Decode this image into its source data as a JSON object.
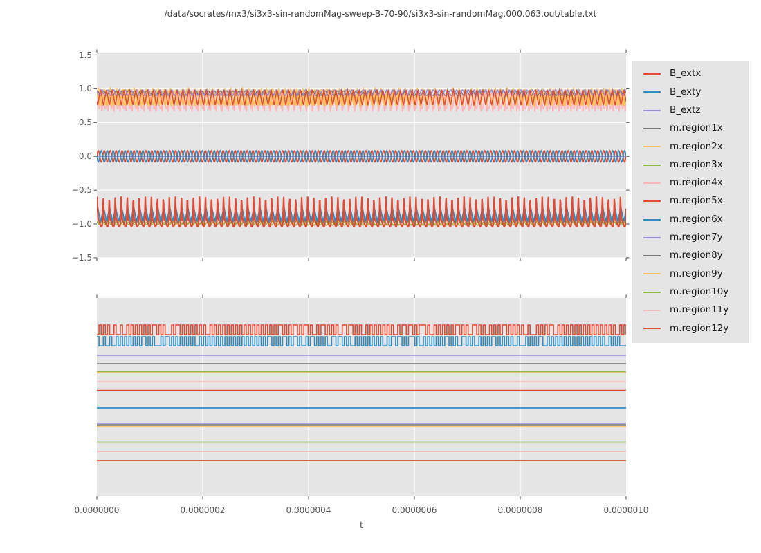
{
  "title": "/data/socrates/mx3/si3x3-sin-randomMag-sweep-B-70-90/si3x3-sin-randomMag.000.063.out/table.txt",
  "chart_data": {
    "type": "line",
    "title": "/data/socrates/mx3/si3x3-sin-randomMag-sweep-B-70-90/si3x3-sin-randomMag.000.063.out/table.txt",
    "xlabel": "t",
    "x_range": [
      0,
      1e-06
    ],
    "x_tick_labels": [
      "0.0000000",
      "0.0000002",
      "0.0000004",
      "0.0000006",
      "0.0000008",
      "0.0000010"
    ],
    "background_color": "#e5e5e5",
    "grid_color": "#ffffff",
    "tick_color": "#555555",
    "legend_position": "upper right, outside axes",
    "panels": [
      {
        "id": "top",
        "y_tick_labels": [
          "1.5",
          "1.0",
          "0.5",
          "0.0",
          "−0.5",
          "−1.0",
          "−1.5"
        ],
        "y_tick_values": [
          1.5,
          1.0,
          0.5,
          0.0,
          -0.5,
          -1.0,
          -1.5
        ],
        "ylim": [
          -1.53,
          1.53
        ],
        "grid": "horizontal and vertical white gridlines",
        "description": "Three dense oscillation bands: orange/pink/purple/red band between ~0.65 and 1.0; red+blue sine pair with flat purple zero line between ~-0.09 and 0.09; red spiky band with blue/green between ~-1.03 and -0.6"
      },
      {
        "id": "bottom",
        "y_tick_labels": [],
        "y_tick_values": [],
        "grid": "vertical white gridlines only",
        "description": "Red and blue square waves near top, then 13 flat horizontal colored lines (levels given as fraction of panel height from top)"
      }
    ],
    "top_draw_order": [
      "m.region11y",
      "m.region4x",
      "m.region9y",
      "m.region2x",
      "m.region8y",
      "m.region7y",
      "m.region12y",
      "m.region1x",
      "m.region10y",
      "m.region3x",
      "m.region6x",
      "m.region5x",
      "B_extz",
      "B_extx",
      "B_exty"
    ],
    "series": [
      {
        "name": "B_extx",
        "color": "#E24A33",
        "top": {
          "kind": "sine",
          "c": 0,
          "a": 0.085,
          "cycles": 89,
          "ph": 0,
          "lw": 1.6
        },
        "bottom": {
          "kind": "square",
          "hi": 0.136,
          "lo": 0.185,
          "cycles": 124,
          "seed": 3,
          "lw": 1.6
        }
      },
      {
        "name": "B_exty",
        "color": "#348ABD",
        "top": {
          "kind": "sine",
          "c": 0,
          "a": 0.085,
          "cycles": 89,
          "ph": 3.1416,
          "lw": 1.6
        },
        "bottom": {
          "kind": "square",
          "hi": 0.195,
          "lo": 0.241,
          "cycles": 124,
          "seed": 8,
          "lw": 1.6
        }
      },
      {
        "name": "B_extz",
        "color": "#988ED5",
        "top": {
          "kind": "flat",
          "c": 0,
          "lw": 1.5
        },
        "bottom": {
          "kind": "flat",
          "level": 0.289,
          "lw": 1.6
        }
      },
      {
        "name": "m.region1x",
        "color": "#777777",
        "top": {
          "kind": "sine",
          "c": -0.93,
          "a": 0.05,
          "cycles": 88,
          "ph": 1.1,
          "lw": 1.3
        },
        "bottom": {
          "kind": "flat",
          "level": 0.331,
          "lw": 1.6
        }
      },
      {
        "name": "m.region2x",
        "color": "#FBC15E",
        "top": {
          "kind": "tri",
          "c": 0.875,
          "a": 0.125,
          "cycles": 88,
          "ph": 0,
          "lw": 2.2
        },
        "bottom": {
          "kind": "flat",
          "level": 0.377,
          "lw": 1.6
        }
      },
      {
        "name": "m.region3x",
        "color": "#8EBA42",
        "top": {
          "kind": "sine",
          "c": -0.985,
          "a": 0.025,
          "cycles": 90,
          "ph": 2.2,
          "lw": 1.4
        },
        "bottom": {
          "kind": "flat",
          "level": 0.371,
          "lw": 1.5
        }
      },
      {
        "name": "m.region4x",
        "color": "#FFB5B8",
        "top": {
          "kind": "spiky",
          "c": 0.875,
          "a": 0.04,
          "spike": -0.2,
          "sharp": 5,
          "cycles": 88,
          "ph": 0.6,
          "ph2": 2.5,
          "lw": 1.8
        },
        "bottom": {
          "kind": "flat",
          "level": 0.422,
          "lw": 1.6
        }
      },
      {
        "name": "m.region5x",
        "color": "#E24A33",
        "top": {
          "kind": "spiky",
          "c": -0.99,
          "a": 0.045,
          "spike": 0.38,
          "sharp": 8,
          "cycles": 88,
          "ph": 0,
          "ph2": 1.2,
          "lw": 2.2
        },
        "bottom": {
          "kind": "flat",
          "level": 0.465,
          "lw": 1.6
        }
      },
      {
        "name": "m.region6x",
        "color": "#348ABD",
        "top": {
          "kind": "tri",
          "c": -0.862,
          "a": 0.105,
          "cycles": 88,
          "ph": 0.8,
          "lw": 1.9
        },
        "bottom": {
          "kind": "flat",
          "level": 0.554,
          "lw": 1.8
        }
      },
      {
        "name": "m.region7y",
        "color": "#988ED5",
        "top": {
          "kind": "sine",
          "c": 0.942,
          "a": 0.042,
          "cycles": 91,
          "ph": 2.4,
          "lw": 1.5
        },
        "bottom": {
          "kind": "flat",
          "level": 0.634,
          "lw": 1.4
        }
      },
      {
        "name": "m.region8y",
        "color": "#777777",
        "top": {
          "kind": "sine",
          "c": 0.935,
          "a": 0.035,
          "cycles": 86,
          "ph": 0.9,
          "lw": 1.3
        },
        "bottom": {
          "kind": "flat",
          "level": 0.641,
          "lw": 1.6
        }
      },
      {
        "name": "m.region9y",
        "color": "#FBC15E",
        "top": {
          "kind": "tri",
          "c": 0.862,
          "a": 0.112,
          "cycles": 89,
          "ph": 1.7,
          "lw": 2.0
        },
        "bottom": {
          "kind": "flat",
          "level": 0.648,
          "lw": 1.6
        }
      },
      {
        "name": "m.region10y",
        "color": "#8EBA42",
        "top": {
          "kind": "sine",
          "c": -0.995,
          "a": 0.022,
          "cycles": 87,
          "ph": 0.4,
          "lw": 1.4
        },
        "bottom": {
          "kind": "flat",
          "level": 0.727,
          "lw": 1.6
        }
      },
      {
        "name": "m.region11y",
        "color": "#FFB5B8",
        "top": {
          "kind": "sine",
          "c": 0.82,
          "a": 0.115,
          "cycles": 87,
          "ph": 2.1,
          "lw": 1.5
        },
        "bottom": {
          "kind": "flat",
          "level": 0.774,
          "lw": 1.6
        }
      },
      {
        "name": "m.region12y",
        "color": "#E24A33",
        "top": {
          "kind": "tri",
          "c": 0.872,
          "a": 0.118,
          "cycles": 90,
          "ph": 3.9,
          "lw": 1.5
        },
        "bottom": {
          "kind": "flat",
          "level": 0.819,
          "lw": 1.6
        }
      }
    ]
  }
}
